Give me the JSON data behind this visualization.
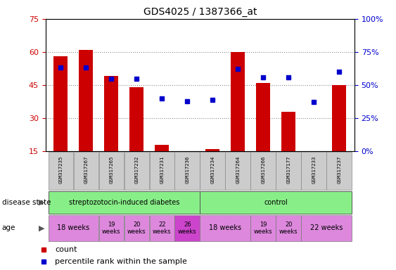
{
  "title": "GDS4025 / 1387366_at",
  "samples": [
    "GSM317235",
    "GSM317267",
    "GSM317265",
    "GSM317232",
    "GSM317231",
    "GSM317236",
    "GSM317234",
    "GSM317264",
    "GSM317266",
    "GSM317177",
    "GSM317233",
    "GSM317237"
  ],
  "count_values": [
    58,
    61,
    49,
    44,
    18,
    15,
    16,
    60,
    46,
    33,
    15,
    45
  ],
  "percentile_values": [
    63,
    63,
    55,
    55,
    40,
    38,
    39,
    62,
    56,
    56,
    37,
    60
  ],
  "ylim_left": [
    15,
    75
  ],
  "ylim_right": [
    0,
    100
  ],
  "yticks_left": [
    15,
    30,
    45,
    60,
    75
  ],
  "yticks_right": [
    0,
    25,
    50,
    75,
    100
  ],
  "bar_color": "#cc0000",
  "dot_color": "#0000cc",
  "left_tick_color": "#cc0000",
  "right_tick_color": "#0000cc",
  "grid_color": "#888888",
  "label_row_color": "#cccccc",
  "disease_green": "#88ee88",
  "age_violet": "#dd88dd",
  "age_dark_violet": "#cc44cc",
  "strep_label": "streptozotocin-induced diabetes",
  "control_label": "control",
  "disease_state_text": "disease state",
  "age_text": "age",
  "legend_count": "count",
  "legend_pct": "percentile rank within the sample",
  "age_groups_strep": [
    {
      "label": "18 weeks",
      "start": 0,
      "end": 1
    },
    {
      "label": "19\nweeks",
      "start": 2,
      "end": 2
    },
    {
      "label": "20\nweeks",
      "start": 3,
      "end": 3
    },
    {
      "label": "22\nweeks",
      "start": 4,
      "end": 4
    },
    {
      "label": "26\nweeks",
      "start": 5,
      "end": 5,
      "dark": true
    }
  ],
  "age_groups_ctrl": [
    {
      "label": "18 weeks",
      "start": 6,
      "end": 7
    },
    {
      "label": "19\nweeks",
      "start": 8,
      "end": 8
    },
    {
      "label": "20\nweeks",
      "start": 9,
      "end": 9
    },
    {
      "label": "22 weeks",
      "start": 10,
      "end": 11
    }
  ]
}
